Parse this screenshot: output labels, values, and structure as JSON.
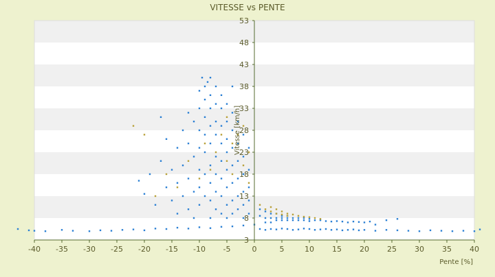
{
  "chart_data": {
    "type": "scatter",
    "title": "VITESSE vs PENTE",
    "xlabel": "Pente [%]",
    "ylabel": "Vitesse [km/h]",
    "xlim": [
      -40,
      40
    ],
    "ylim": [
      3,
      53
    ],
    "x_ticks": [
      -40,
      -35,
      -30,
      -25,
      -20,
      -15,
      -10,
      -5,
      0,
      5,
      10,
      15,
      20,
      25,
      30,
      35,
      40
    ],
    "y_ticks": [
      3,
      8,
      13,
      18,
      23,
      28,
      33,
      38,
      43,
      48,
      53
    ],
    "grid": "horizontal bands",
    "legend": "none",
    "colors": {
      "background": "#eef2cf",
      "band_light": "#ffffff",
      "band_dark": "#f0f0f0",
      "series_blue": "#2a7fd4",
      "series_gold": "#b8a038",
      "axis": "#556b2f",
      "text": "#5a5a2a"
    },
    "series": [
      {
        "color": "#2a7fd4",
        "points": [
          [
            -43,
            5.5
          ],
          [
            -41,
            5.2
          ],
          [
            -40,
            5.1
          ],
          [
            -38,
            5.0
          ],
          [
            -35,
            5.3
          ],
          [
            -33,
            5.1
          ],
          [
            -30,
            5.0
          ],
          [
            -28,
            5.2
          ],
          [
            -26,
            5.1
          ],
          [
            -24,
            5.3
          ],
          [
            -22,
            5.4
          ],
          [
            -20,
            5.2
          ],
          [
            -18,
            5.6
          ],
          [
            -16,
            5.5
          ],
          [
            -14,
            5.8
          ],
          [
            -12,
            5.6
          ],
          [
            -10,
            5.9
          ],
          [
            -8,
            5.7
          ],
          [
            -6,
            6.0
          ],
          [
            -4,
            6.1
          ],
          [
            -2,
            6.3
          ],
          [
            0,
            6.5
          ],
          [
            -21,
            16.5
          ],
          [
            -20,
            13.5
          ],
          [
            -19,
            18
          ],
          [
            -18,
            11
          ],
          [
            -17,
            21
          ],
          [
            -17,
            31
          ],
          [
            -16,
            26
          ],
          [
            -16,
            15
          ],
          [
            -15,
            19
          ],
          [
            -15,
            12
          ],
          [
            -14,
            24
          ],
          [
            -14,
            16
          ],
          [
            -14,
            9
          ],
          [
            -13,
            28
          ],
          [
            -13,
            20
          ],
          [
            -13,
            13
          ],
          [
            -12,
            32
          ],
          [
            -12,
            25
          ],
          [
            -12,
            17
          ],
          [
            -12,
            10
          ],
          [
            -11,
            30
          ],
          [
            -11,
            22
          ],
          [
            -11,
            14
          ],
          [
            -11,
            8
          ],
          [
            -10,
            37
          ],
          [
            -10,
            33
          ],
          [
            -10,
            28
          ],
          [
            -10,
            24
          ],
          [
            -10,
            19
          ],
          [
            -10,
            15
          ],
          [
            -10,
            11
          ],
          [
            -9.5,
            40
          ],
          [
            -9,
            38
          ],
          [
            -9,
            35
          ],
          [
            -9,
            31
          ],
          [
            -9,
            27
          ],
          [
            -9,
            23
          ],
          [
            -9,
            18
          ],
          [
            -9,
            13
          ],
          [
            -8.5,
            39
          ],
          [
            -8,
            40
          ],
          [
            -8,
            36
          ],
          [
            -8,
            33
          ],
          [
            -8,
            29
          ],
          [
            -8,
            25
          ],
          [
            -8,
            20
          ],
          [
            -8,
            16
          ],
          [
            -8,
            12
          ],
          [
            -8,
            8
          ],
          [
            -7,
            38
          ],
          [
            -7,
            34
          ],
          [
            -7,
            30
          ],
          [
            -7,
            27
          ],
          [
            -7,
            22
          ],
          [
            -7,
            18
          ],
          [
            -7,
            14
          ],
          [
            -7,
            10
          ],
          [
            -6,
            36
          ],
          [
            -6,
            33
          ],
          [
            -6,
            29
          ],
          [
            -6,
            25
          ],
          [
            -6,
            21
          ],
          [
            -6,
            17
          ],
          [
            -6,
            13
          ],
          [
            -6,
            9
          ],
          [
            -5,
            34
          ],
          [
            -5,
            30
          ],
          [
            -5,
            26
          ],
          [
            -5,
            23
          ],
          [
            -5,
            19
          ],
          [
            -5,
            15
          ],
          [
            -5,
            11
          ],
          [
            -5,
            8
          ],
          [
            -4,
            38
          ],
          [
            -4,
            32
          ],
          [
            -4,
            28
          ],
          [
            -4,
            24
          ],
          [
            -4,
            20
          ],
          [
            -4,
            16
          ],
          [
            -4,
            12
          ],
          [
            -4,
            9
          ],
          [
            -3,
            30
          ],
          [
            -3,
            25
          ],
          [
            -3,
            21
          ],
          [
            -3,
            17
          ],
          [
            -3,
            13
          ],
          [
            -3,
            10
          ],
          [
            -2,
            27
          ],
          [
            -2,
            22
          ],
          [
            -2,
            18
          ],
          [
            -2,
            14
          ],
          [
            -2,
            11
          ],
          [
            -2,
            8
          ],
          [
            -1,
            24
          ],
          [
            -1,
            19
          ],
          [
            -1,
            15
          ],
          [
            -1,
            12
          ],
          [
            -1,
            9
          ],
          [
            1,
            10
          ],
          [
            1,
            8.5
          ],
          [
            2,
            9.5
          ],
          [
            2,
            8
          ],
          [
            2,
            7
          ],
          [
            3,
            9
          ],
          [
            3,
            8
          ],
          [
            3,
            7
          ],
          [
            4,
            9
          ],
          [
            4,
            8
          ],
          [
            4,
            7.5
          ],
          [
            5,
            8.5
          ],
          [
            5,
            8
          ],
          [
            5,
            7.5
          ],
          [
            6,
            8.5
          ],
          [
            6,
            8
          ],
          [
            6,
            7.5
          ],
          [
            7,
            8
          ],
          [
            7,
            7.5
          ],
          [
            8,
            8
          ],
          [
            8,
            7.5
          ],
          [
            9,
            8
          ],
          [
            9,
            7.5
          ],
          [
            10,
            7.8
          ],
          [
            10,
            7.3
          ],
          [
            11,
            7.5
          ],
          [
            12,
            7.5
          ],
          [
            13,
            7.3
          ],
          [
            14,
            7.2
          ],
          [
            15,
            7.3
          ],
          [
            16,
            7.2
          ],
          [
            17,
            7.0
          ],
          [
            18,
            7.2
          ],
          [
            19,
            7.1
          ],
          [
            20,
            7.0
          ],
          [
            21,
            7.2
          ],
          [
            22,
            6.5
          ],
          [
            24,
            7.5
          ],
          [
            26,
            7.8
          ],
          [
            1,
            5.5
          ],
          [
            2,
            5.3
          ],
          [
            3,
            5.5
          ],
          [
            4,
            5.4
          ],
          [
            5,
            5.6
          ],
          [
            6,
            5.5
          ],
          [
            7,
            5.3
          ],
          [
            8,
            5.4
          ],
          [
            9,
            5.6
          ],
          [
            10,
            5.5
          ],
          [
            11,
            5.3
          ],
          [
            12,
            5.4
          ],
          [
            13,
            5.5
          ],
          [
            14,
            5.3
          ],
          [
            15,
            5.4
          ],
          [
            16,
            5.2
          ],
          [
            17,
            5.3
          ],
          [
            18,
            5.4
          ],
          [
            19,
            5.2
          ],
          [
            20,
            5.3
          ],
          [
            22,
            5.1
          ],
          [
            24,
            5.3
          ],
          [
            26,
            5.2
          ],
          [
            28,
            5.1
          ],
          [
            30,
            5.0
          ],
          [
            32,
            5.2
          ],
          [
            34,
            5.1
          ],
          [
            36,
            5.0
          ],
          [
            38,
            5.1
          ],
          [
            40,
            5.0
          ],
          [
            41,
            5.4
          ]
        ]
      },
      {
        "color": "#b8a038",
        "points": [
          [
            -22,
            29
          ],
          [
            -20,
            27
          ],
          [
            -18,
            13
          ],
          [
            -16,
            18
          ],
          [
            -14,
            15
          ],
          [
            -12,
            21
          ],
          [
            -10,
            17
          ],
          [
            -9,
            25
          ],
          [
            -8,
            19
          ],
          [
            -7,
            23
          ],
          [
            -6,
            27
          ],
          [
            -5,
            21
          ],
          [
            -5,
            31
          ],
          [
            -4,
            25
          ],
          [
            -4,
            18
          ],
          [
            -3,
            27
          ],
          [
            -2,
            29
          ],
          [
            -2,
            20
          ],
          [
            -1,
            23
          ],
          [
            -1,
            16
          ],
          [
            1,
            11
          ],
          [
            2,
            10
          ],
          [
            3,
            10.5
          ],
          [
            3,
            9.5
          ],
          [
            4,
            10
          ],
          [
            4,
            9
          ],
          [
            5,
            9.5
          ],
          [
            5,
            8.8
          ],
          [
            6,
            9
          ],
          [
            6,
            8.5
          ],
          [
            7,
            8.8
          ],
          [
            8,
            8.5
          ],
          [
            9,
            8.3
          ],
          [
            10,
            8.2
          ],
          [
            11,
            8.0
          ],
          [
            12,
            7.8
          ]
        ]
      }
    ]
  }
}
